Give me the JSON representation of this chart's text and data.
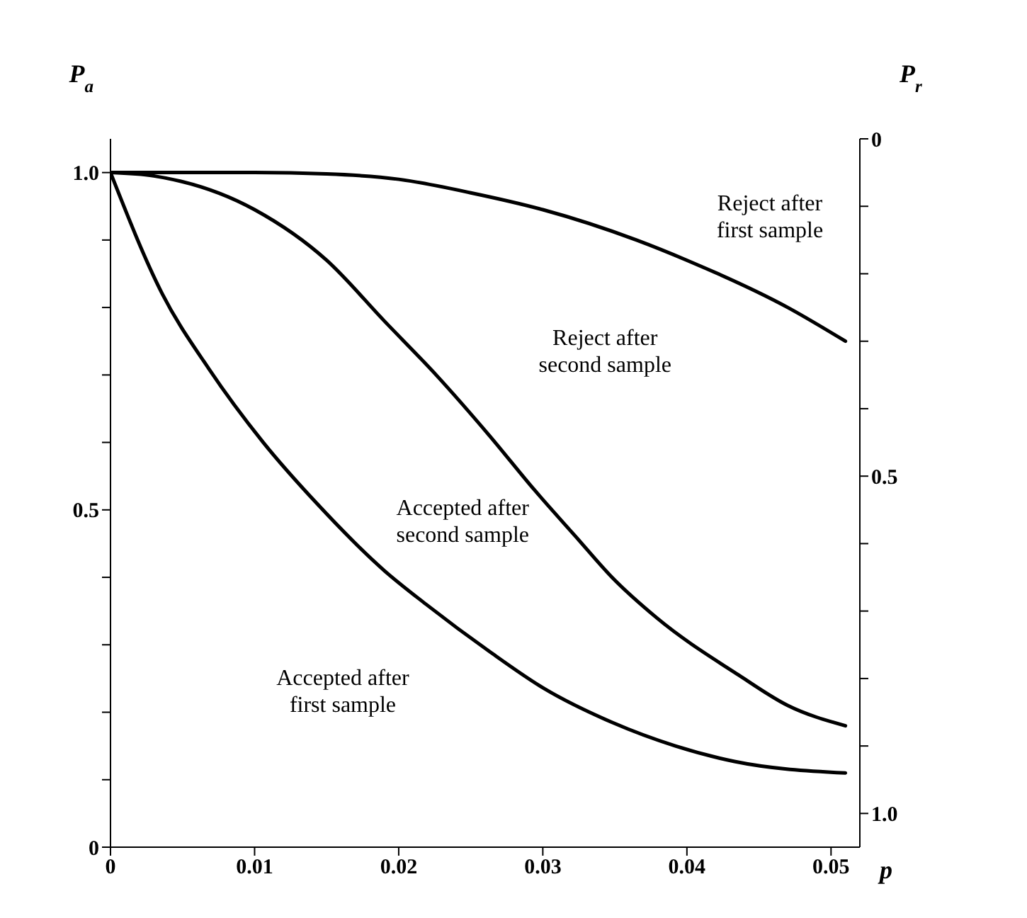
{
  "chart_data": {
    "type": "line",
    "xlabel": "p",
    "ylabel": "P$_{a}$",
    "y2label": "P$_{r}$",
    "xlim": [
      0,
      0.052
    ],
    "xticks": [
      0,
      0.01,
      0.02,
      0.03,
      0.04,
      0.05
    ],
    "ylim": [
      0,
      1.05
    ],
    "yticks": [
      0,
      {
        "value": 0.1,
        "label": null
      },
      {
        "value": 0.2,
        "label": null
      },
      {
        "value": 0.3,
        "label": null
      },
      {
        "value": 0.4,
        "label": null
      },
      0.5,
      {
        "value": 0.6,
        "label": null
      },
      {
        "value": 0.7,
        "label": null
      },
      {
        "value": 0.8,
        "label": null
      },
      {
        "value": 0.9,
        "label": null
      },
      {
        "value": 1,
        "label": "1.0"
      }
    ],
    "y2lim": [
      1.05,
      0
    ],
    "y2ticks": [
      0,
      {
        "value": 0.1,
        "label": null
      },
      {
        "value": 0.2,
        "label": null
      },
      {
        "value": 0.3,
        "label": null
      },
      {
        "value": 0.4,
        "label": null
      },
      0.5,
      {
        "value": 0.6,
        "label": null
      },
      {
        "value": 0.7,
        "label": null
      },
      {
        "value": 0.8,
        "label": null
      },
      {
        "value": 0.9,
        "label": null
      },
      {
        "value": 1,
        "label": "1.0"
      }
    ],
    "series": [
      {
        "color": "#000000",
        "x": [
          0,
          0.01,
          0.015,
          0.02,
          0.025,
          0.03,
          0.0365,
          0.04,
          0.047,
          0.051
        ],
        "values": [
          1,
          1,
          0.998,
          0.99,
          0.97,
          0.945,
          0.9,
          0.87,
          0.8,
          0.75
        ]
      },
      {
        "color": "#000000",
        "x": [
          0,
          0.003,
          0.01,
          0.015,
          0.019,
          0.0226,
          0.0263,
          0.0294,
          0.0323,
          0.0348,
          0.0379,
          0.0436,
          0.047,
          0.051
        ],
        "values": [
          1,
          0.995,
          0.945,
          0.87,
          0.78,
          0.7,
          0.61,
          0.53,
          0.46,
          0.4,
          0.34,
          0.255,
          0.21,
          0.18
        ]
      },
      {
        "color": "#000000",
        "x": [
          0,
          0.0036,
          0.0068,
          0.0106,
          0.0143,
          0.019,
          0.0219,
          0.0263,
          0.0301,
          0.0348,
          0.0392,
          0.0433,
          0.051
        ],
        "values": [
          1,
          0.82,
          0.71,
          0.6,
          0.51,
          0.41,
          0.36,
          0.29,
          0.235,
          0.185,
          0.15,
          0.127,
          0.11
        ]
      }
    ],
    "annotations": [
      "Reject after\nfirst sample",
      "Reject after\nsecond sample",
      "Accepted after\nsecond sample",
      "Accepted after\nfirst sample"
    ]
  }
}
